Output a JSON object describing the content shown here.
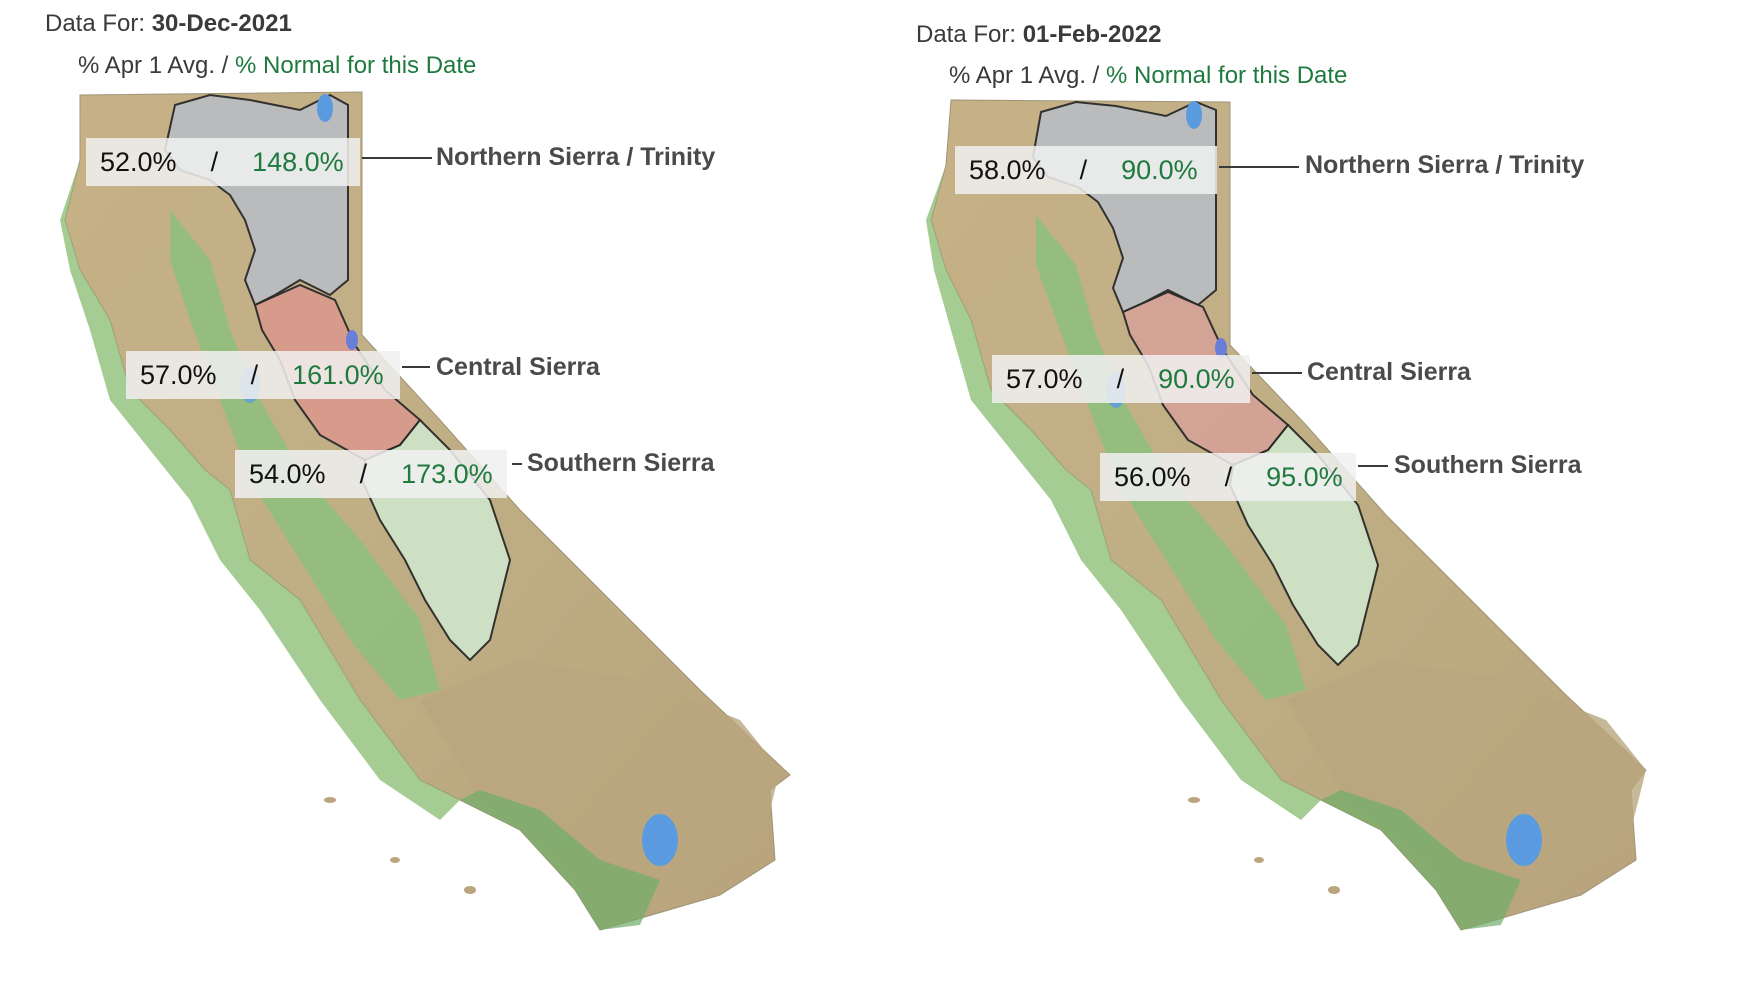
{
  "legend": {
    "avg_label": "% Apr 1 Avg.",
    "separator": " / ",
    "normal_label": "% Normal for this Date"
  },
  "panels": [
    {
      "data_for_label": "Data For:",
      "date": "30-Dec-2021",
      "regions": [
        {
          "name": "Northern Sierra / Trinity",
          "pct_apr1_avg": "52.0%",
          "pct_normal": "148.0%"
        },
        {
          "name": "Central Sierra",
          "pct_apr1_avg": "57.0%",
          "pct_normal": "161.0%"
        },
        {
          "name": "Southern Sierra",
          "pct_apr1_avg": "54.0%",
          "pct_normal": "173.0%"
        }
      ]
    },
    {
      "data_for_label": "Data For:",
      "date": "01-Feb-2022",
      "regions": [
        {
          "name": "Northern Sierra / Trinity",
          "pct_apr1_avg": "58.0%",
          "pct_normal": "90.0%"
        },
        {
          "name": "Central Sierra",
          "pct_apr1_avg": "57.0%",
          "pct_normal": "90.0%"
        },
        {
          "name": "Southern Sierra",
          "pct_apr1_avg": "56.0%",
          "pct_normal": "95.0%"
        }
      ]
    }
  ],
  "colors": {
    "normal_green": "#1f7a3e",
    "north_region": "#b9bcc0",
    "central_region_dec": "#d99a8c",
    "central_region_feb": "#d4a396",
    "south_region": "#cfe3c8",
    "terrain_tan": "#c9b48a",
    "valley_green": "#8cc07a",
    "lake_blue": "#5a9be0"
  }
}
